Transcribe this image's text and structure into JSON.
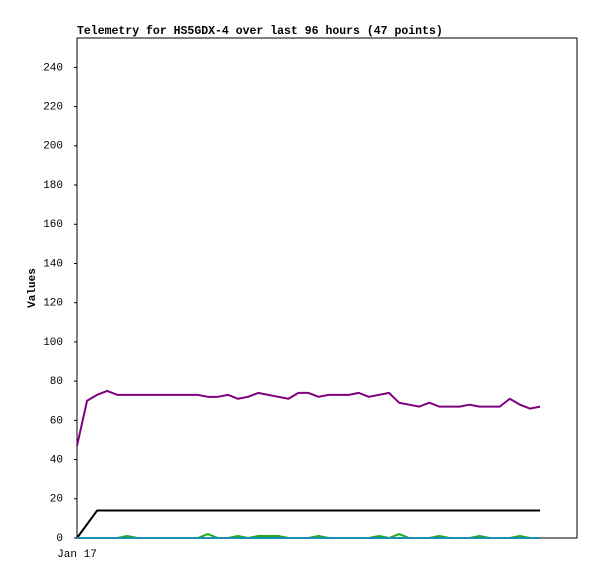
{
  "chart_data": {
    "type": "line",
    "title": "Telemetry for HS5GDX-4 over last 96 hours (47 points)",
    "y_label": "Values",
    "categories": [
      "Jan 17",
      null,
      null,
      null,
      null,
      null,
      null,
      null,
      null,
      null,
      null,
      null,
      null,
      null,
      null,
      null,
      null,
      null,
      null,
      null,
      null,
      null,
      null,
      null,
      null,
      null,
      null,
      null,
      null,
      null,
      null,
      null,
      null,
      null,
      null,
      null,
      null,
      null,
      null,
      null,
      null,
      null,
      null,
      null,
      null,
      null,
      null
    ],
    "ylim": [
      0,
      255
    ],
    "yticks": [
      0,
      20,
      40,
      60,
      80,
      100,
      120,
      140,
      160,
      180,
      200,
      220,
      240
    ],
    "grid": false,
    "series": [
      {
        "color": "#800080",
        "values": [
          47,
          70,
          73,
          75,
          73,
          73,
          73,
          73,
          73,
          73,
          73,
          73,
          73,
          72,
          72,
          73,
          71,
          72,
          74,
          73,
          72,
          71,
          74,
          74,
          72,
          73,
          73,
          73,
          74,
          72,
          73,
          74,
          69,
          68,
          67,
          69,
          67,
          67,
          67,
          68,
          67,
          67,
          67,
          71,
          68,
          66,
          67
        ]
      },
      {
        "color": "#000000",
        "values": [
          0,
          7,
          14,
          14,
          14,
          14,
          14,
          14,
          14,
          14,
          14,
          14,
          14,
          14,
          14,
          14,
          14,
          14,
          14,
          14,
          14,
          14,
          14,
          14,
          14,
          14,
          14,
          14,
          14,
          14,
          14,
          14,
          14,
          14,
          14,
          14,
          14,
          14,
          14,
          14,
          14,
          14,
          14,
          14,
          14,
          14,
          14
        ]
      },
      {
        "color": "#22aa22",
        "values": [
          0,
          0,
          0,
          0,
          0,
          1,
          0,
          0,
          0,
          0,
          0,
          0,
          0,
          2,
          0,
          0,
          1,
          0,
          1,
          1,
          1,
          0,
          0,
          0,
          1,
          0,
          0,
          0,
          0,
          0,
          1,
          0,
          2,
          0,
          0,
          0,
          1,
          0,
          0,
          0,
          1,
          0,
          0,
          0,
          1,
          0,
          0
        ]
      },
      {
        "color": "#1a8fb0",
        "values": [
          0,
          0,
          0,
          0,
          0,
          0,
          0,
          0,
          0,
          0,
          0,
          0,
          0,
          0,
          0,
          0,
          0,
          0,
          0,
          0,
          0,
          0,
          0,
          0,
          0,
          0,
          0,
          0,
          0,
          0,
          0,
          0,
          0,
          0,
          0,
          0,
          0,
          0,
          0,
          0,
          0,
          0,
          0,
          0,
          0,
          0,
          0
        ]
      }
    ]
  }
}
